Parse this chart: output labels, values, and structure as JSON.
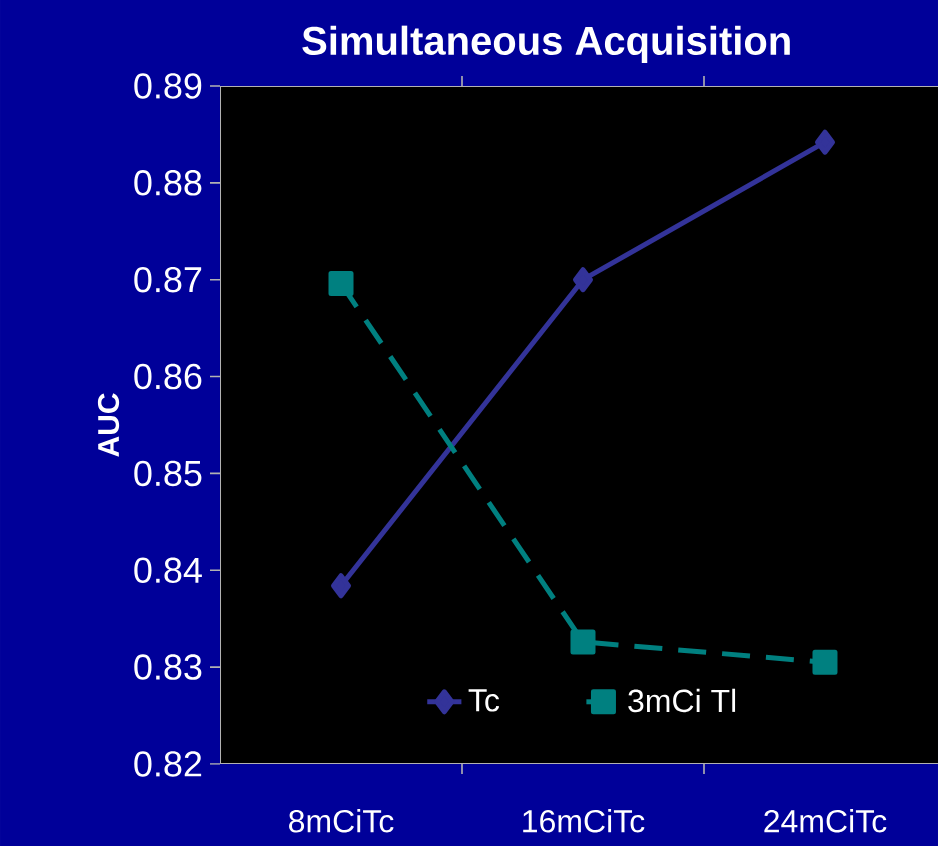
{
  "chart_data": {
    "type": "line",
    "title": "Simultaneous Acquisition",
    "ylabel": "AUC",
    "categories": [
      "8mCiTc",
      "16mCiTc",
      "24mCiTc"
    ],
    "series": [
      {
        "name": "Tc",
        "color": "#333399",
        "values": [
          0.8384,
          0.87,
          0.8842
        ],
        "marker": "diamond",
        "line_style": "solid"
      },
      {
        "name": "3mCi Tl",
        "color": "#008080",
        "values": [
          0.8696,
          0.8326,
          0.8305
        ],
        "marker": "square",
        "line_style": "dashed"
      }
    ],
    "ylim": [
      0.82,
      0.89
    ],
    "yticks": [
      0.82,
      0.83,
      0.84,
      0.85,
      0.86,
      0.87,
      0.88,
      0.89
    ],
    "grid": false,
    "legend": "bottom"
  }
}
